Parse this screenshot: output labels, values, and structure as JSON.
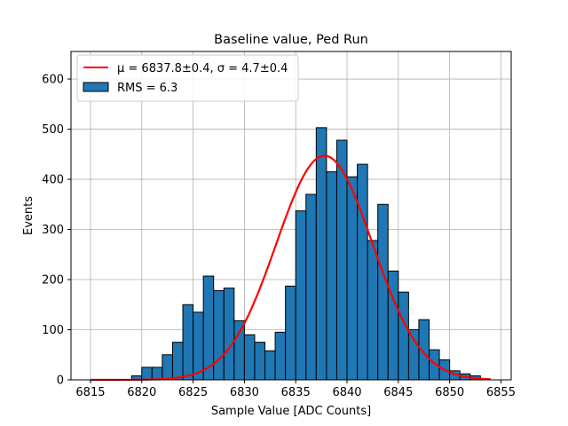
{
  "chart_data": {
    "type": "bar",
    "title": "Baseline value, Ped Run",
    "xlabel": "Sample Value [ADC Counts]",
    "ylabel": "Events",
    "xlim": [
      6813.1,
      6856.0
    ],
    "ylim": [
      0,
      655
    ],
    "xticks": [
      6815,
      6820,
      6825,
      6830,
      6835,
      6840,
      6845,
      6850,
      6855
    ],
    "yticks": [
      0,
      100,
      200,
      300,
      400,
      500,
      600
    ],
    "grid": true,
    "legend_position": "top-left",
    "histogram": {
      "name": "RMS = 6.3",
      "bin_start": 6819,
      "bin_width": 1,
      "counts": [
        8,
        25,
        25,
        50,
        75,
        150,
        135,
        207,
        178,
        183,
        118,
        90,
        75,
        58,
        95,
        187,
        337,
        370,
        503,
        415,
        478,
        405,
        430,
        278,
        350,
        217,
        175,
        100,
        120,
        60,
        40,
        18,
        12,
        8
      ],
      "color": "#1f77b4",
      "edgecolor": "#000000"
    },
    "fit": {
      "name": "μ = 6837.8±0.4, σ = 4.7±0.4",
      "type": "gaussian",
      "mu": 6837.8,
      "sigma": 4.7,
      "amplitude": 447,
      "x_range": [
        6815,
        6854
      ],
      "color": "#ff0000"
    }
  }
}
